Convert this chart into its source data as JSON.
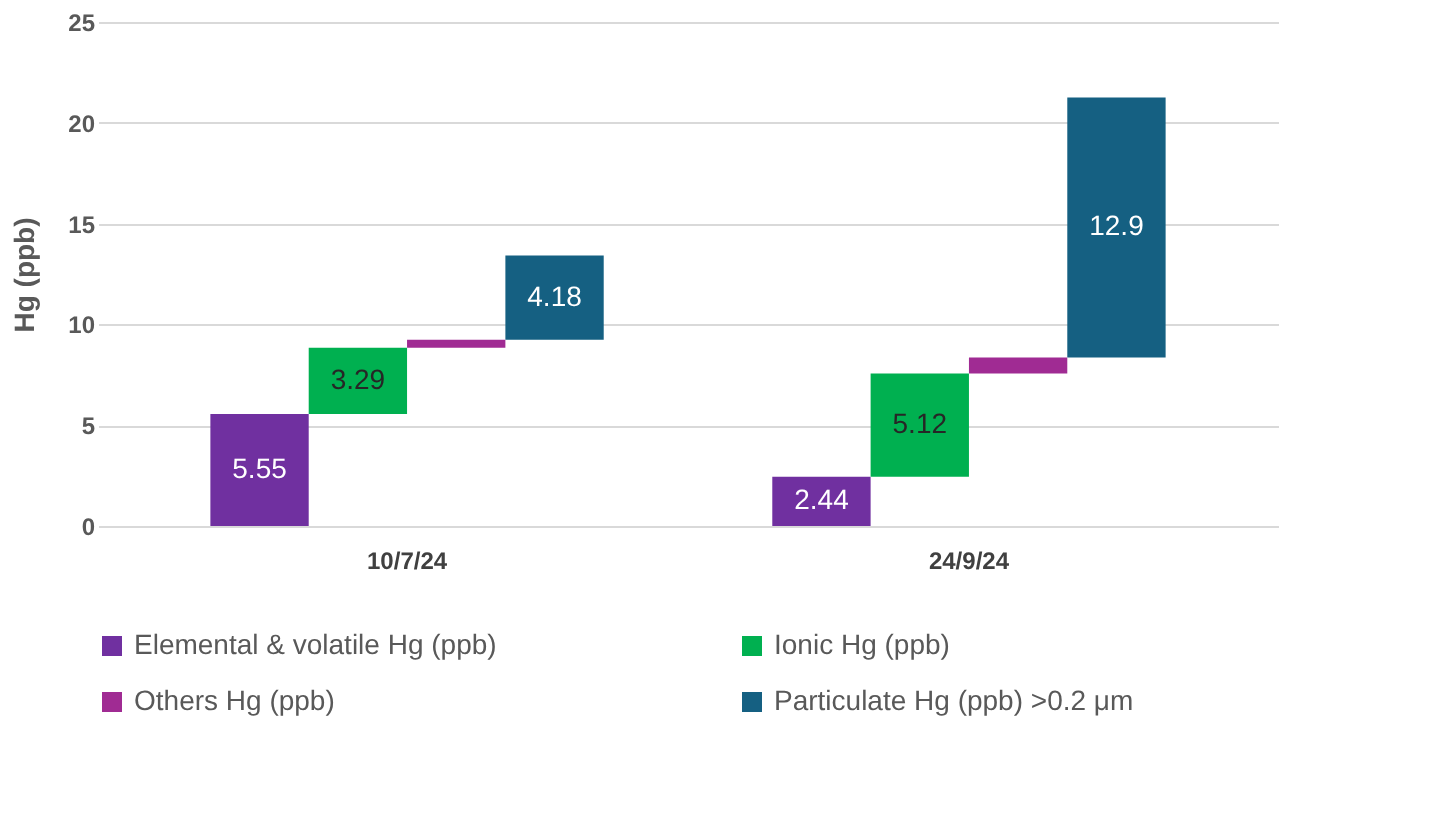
{
  "chart_data": {
    "type": "bar",
    "ylabel": "Hg (ppb)",
    "categories": [
      "10/7/24",
      "24/9/24"
    ],
    "series": [
      {
        "name": "Elemental & volatile Hg (ppb)",
        "color": "#7030a0",
        "values": [
          5.55,
          2.44
        ],
        "base": [
          0,
          0
        ],
        "value_labels": [
          "5.55",
          "2.44"
        ]
      },
      {
        "name": "Ionic Hg (ppb)",
        "color": "#00b050",
        "values": [
          3.29,
          5.12
        ],
        "base": [
          5.55,
          2.44
        ],
        "value_labels": [
          "3.29",
          "5.12"
        ]
      },
      {
        "name": "Others Hg (ppb)",
        "color": "#a02b93",
        "values": [
          0.4,
          0.8
        ],
        "base": [
          8.84,
          7.56
        ],
        "value_labels": [
          null,
          null
        ]
      },
      {
        "name": "Particulate Hg (ppb) >0.2 μm",
        "color": "#156082",
        "values": [
          4.18,
          12.9
        ],
        "base": [
          9.24,
          8.36
        ],
        "value_labels": [
          "4.18",
          "12.9"
        ]
      }
    ],
    "ylim": [
      0,
      25
    ],
    "yticks": [
      0,
      5,
      10,
      15,
      20,
      25
    ],
    "grid": "y",
    "legend": "bottom"
  }
}
